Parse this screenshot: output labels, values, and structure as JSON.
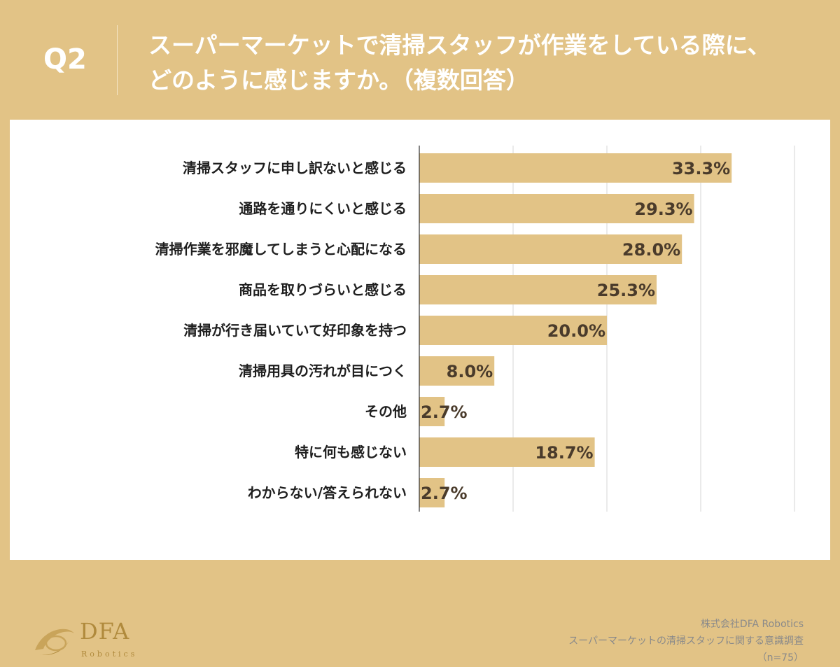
{
  "header": {
    "question_id": "Q2",
    "title_line1": "スーパーマーケットで清掃スタッフが作業をしている際に、",
    "title_line2": "どのように感じますか。（複数回答）"
  },
  "colors": {
    "background": "#e2c386",
    "bar": "#e2c386",
    "panel": "#ffffff"
  },
  "chart_data": {
    "type": "bar",
    "orientation": "horizontal",
    "categories": [
      "清掃スタッフに申し訳ないと感じる",
      "通路を通りにくいと感じる",
      "清掃作業を邪魔してしまうと心配になる",
      "商品を取りづらいと感じる",
      "清掃が行き届いていて好印象を持つ",
      "清掃用具の汚れが目につく",
      "その他",
      "特に何も感じない",
      "わからない/答えられない"
    ],
    "values": [
      33.3,
      29.3,
      28.0,
      25.3,
      20.0,
      8.0,
      2.7,
      18.7,
      2.7
    ],
    "value_labels": [
      "33.3%",
      "29.3%",
      "28.0%",
      "25.3%",
      "20.0%",
      "8.0%",
      "2.7%",
      "18.7%",
      "2.7%"
    ],
    "xlim": [
      0,
      40
    ],
    "grid_step": 10,
    "grid": true,
    "unit": "%"
  },
  "logo": {
    "name": "DFA",
    "sub": "Robotics"
  },
  "source": {
    "company": "株式会社DFA Robotics",
    "survey": "スーパーマーケットの清掃スタッフに関する意識調査",
    "sample": "（n=75）"
  }
}
